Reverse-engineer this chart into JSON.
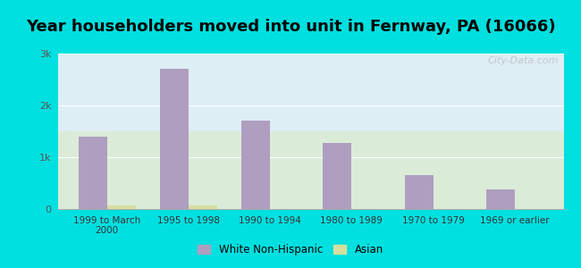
{
  "title": "Year householders moved into unit in Fernway, PA (16066)",
  "categories": [
    "1999 to March\n2000",
    "1995 to 1998",
    "1990 to 1994",
    "1980 to 1989",
    "1970 to 1979",
    "1969 or earlier"
  ],
  "white_values": [
    1400,
    2700,
    1700,
    1280,
    650,
    380
  ],
  "asian_values": [
    65,
    75,
    0,
    0,
    0,
    0
  ],
  "white_color": "#b09ec0",
  "asian_color": "#d4dfa0",
  "background_outer": "#00e0e0",
  "background_inner_top": "#ddeef5",
  "background_inner_bottom": "#daecd8",
  "ylim": [
    0,
    3000
  ],
  "yticks": [
    0,
    1000,
    2000,
    3000
  ],
  "ytick_labels": [
    "0",
    "1k",
    "2k",
    "3k"
  ],
  "title_fontsize": 13,
  "legend_labels": [
    "White Non-Hispanic",
    "Asian"
  ],
  "bar_width": 0.35,
  "watermark": "City-Data.com"
}
